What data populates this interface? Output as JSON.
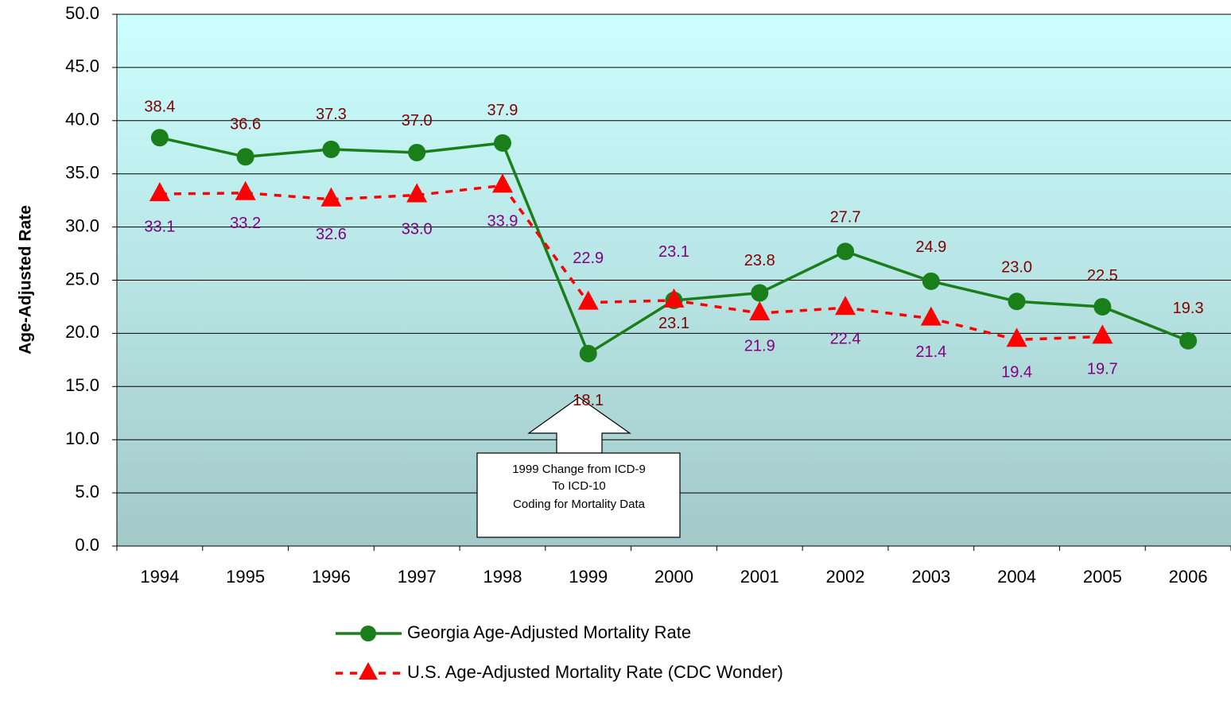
{
  "chart_data": {
    "type": "line",
    "y_label": "Age-Adjusted Rate",
    "categories": [
      "1994",
      "1995",
      "1996",
      "1997",
      "1998",
      "1999",
      "2000",
      "2001",
      "2002",
      "2003",
      "2004",
      "2005",
      "2006"
    ],
    "series": [
      {
        "name": "Georgia Age-Adjusted Mortality Rate",
        "color": "#1a7f1a",
        "label_color": "#800000",
        "line_style": "solid",
        "marker": "circle",
        "values": [
          38.4,
          36.6,
          37.3,
          37.0,
          37.9,
          18.1,
          23.1,
          23.8,
          27.7,
          24.9,
          23.0,
          22.5,
          19.3
        ],
        "value_labels": [
          "38.4",
          "36.6",
          "37.3",
          "37.0",
          "37.9",
          "18.1",
          "23.1",
          "23.8",
          "27.7",
          "24.9",
          "23.0",
          "22.5",
          "19.3"
        ]
      },
      {
        "name": "U.S. Age-Adjusted Mortality Rate (CDC Wonder)",
        "color": "#ff0000",
        "label_color": "#800080",
        "line_style": "dashed",
        "marker": "triangle",
        "values": [
          33.1,
          33.2,
          32.6,
          33.0,
          33.9,
          22.9,
          23.1,
          21.9,
          22.4,
          21.4,
          19.4,
          19.7,
          null
        ],
        "value_labels": [
          "33.1",
          "33.2",
          "32.6",
          "33.0",
          "33.9",
          "22.9",
          "23.1",
          "21.9",
          "22.4",
          "21.4",
          "19.4",
          "19.7",
          null
        ]
      }
    ],
    "ylim": [
      0,
      50
    ],
    "yticks": [
      {
        "value": 0,
        "label": "0.0"
      },
      {
        "value": 5,
        "label": "5.0"
      },
      {
        "value": 10,
        "label": "10.0"
      },
      {
        "value": 15,
        "label": "15.0"
      },
      {
        "value": 20,
        "label": "20.0"
      },
      {
        "value": 25,
        "label": "25.0"
      },
      {
        "value": 30,
        "label": "30.0"
      },
      {
        "value": 35,
        "label": "35.0"
      },
      {
        "value": 40,
        "label": "40.0"
      },
      {
        "value": 45,
        "label": "45.0"
      },
      {
        "value": 50,
        "label": "50.0"
      }
    ],
    "grid": true,
    "legend": "bottom",
    "annotation": [
      "1999 Change from ICD-9",
      "To ICD-10",
      "Coding for Mortality Data"
    ]
  }
}
